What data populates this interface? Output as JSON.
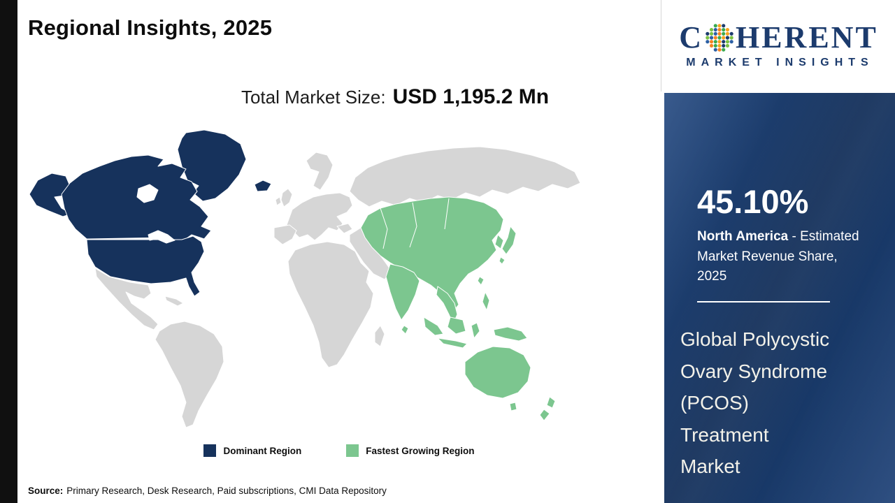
{
  "page": {
    "title": "Regional Insights, 2025",
    "market_size_label": "Total Market Size:",
    "market_size_value": "USD 1,195.2 Mn",
    "source_label": "Source:",
    "source_text": "Primary Research, Desk Research, Paid subscriptions, CMI Data Repository"
  },
  "logo": {
    "prefix": "C",
    "suffix": "HERENT",
    "tagline": "MARKET INSIGHTS",
    "dot_colors": [
      "#3aaa4e",
      "#f58220",
      "#2b5fa3",
      "#7ac143",
      "#1c3b6d",
      "#f6a21d"
    ]
  },
  "legend": {
    "dominant_label": "Dominant Region",
    "dominant_color": "#16325c",
    "fastest_label": "Fastest Growing Region",
    "fastest_color": "#7cc68f"
  },
  "sidebar": {
    "share_value": "45.10%",
    "region_name": "North America",
    "desc_after_region": " - Estimated",
    "desc_line2": "Market Revenue Share,",
    "desc_line3": "2025",
    "market_name_lines": [
      "Global Polycystic",
      "Ovary Syndrome",
      "(PCOS)",
      "Treatment",
      "Market"
    ]
  },
  "chart_data": {
    "type": "heatmap",
    "subtype": "world_choropleth_map",
    "title": "Regional Insights, 2025",
    "total_market_size": "USD 1,195.2 Mn",
    "regions": [
      {
        "name": "North America",
        "classification": "Dominant Region",
        "estimated_market_revenue_share_2025": "45.10%",
        "color": "#16325c",
        "highlighted_areas": [
          "United States",
          "Canada",
          "Alaska",
          "Greenland",
          "Iceland"
        ]
      },
      {
        "name": "Asia Pacific",
        "classification": "Fastest Growing Region",
        "color": "#7cc68f",
        "highlighted_areas": [
          "Central Asia",
          "China",
          "India",
          "Southeast Asia",
          "Korea",
          "Japan",
          "Indonesia",
          "Philippines",
          "Australia",
          "New Zealand"
        ]
      }
    ],
    "base_map_color": "#d6d6d6",
    "legend": [
      "Dominant Region",
      "Fastest Growing Region"
    ],
    "legend_position": "bottom-center",
    "market": "Global Polycystic Ovary Syndrome (PCOS) Treatment Market",
    "source": "Primary Research, Desk Research, Paid subscriptions, CMI Data Repository"
  }
}
